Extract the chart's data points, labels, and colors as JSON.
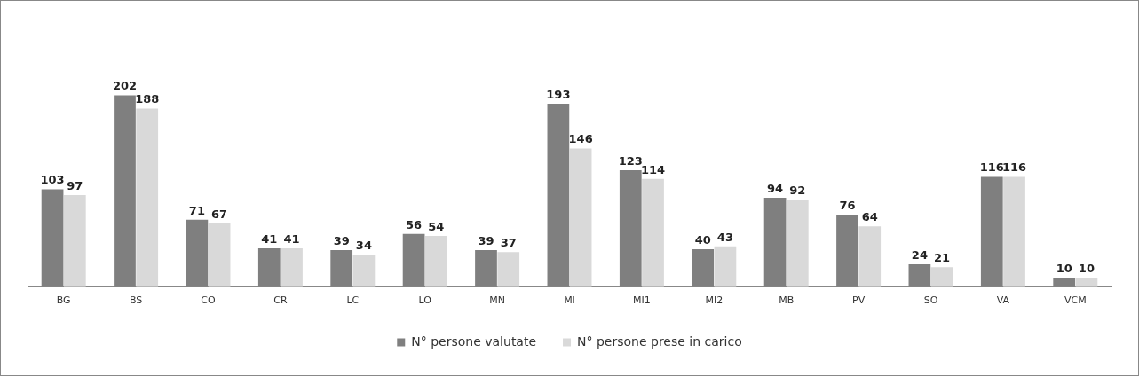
{
  "chart_data": {
    "type": "bar",
    "categories": [
      "BG",
      "BS",
      "CO",
      "CR",
      "LC",
      "LO",
      "MN",
      "MI",
      "MI1",
      "MI2",
      "MB",
      "PV",
      "SO",
      "VA",
      "VCM"
    ],
    "series": [
      {
        "name": "N° persone valutate",
        "color": "#7f7f7f",
        "values": [
          103,
          202,
          71,
          41,
          39,
          56,
          39,
          193,
          123,
          40,
          94,
          76,
          24,
          116,
          10
        ]
      },
      {
        "name": "N° persone prese in carico",
        "color": "#d9d9d9",
        "values": [
          97,
          188,
          67,
          41,
          34,
          54,
          37,
          146,
          114,
          43,
          92,
          64,
          21,
          116,
          10
        ]
      }
    ],
    "data_labels": true,
    "grid": false,
    "legend": "bottom",
    "tick_labels": "x"
  }
}
